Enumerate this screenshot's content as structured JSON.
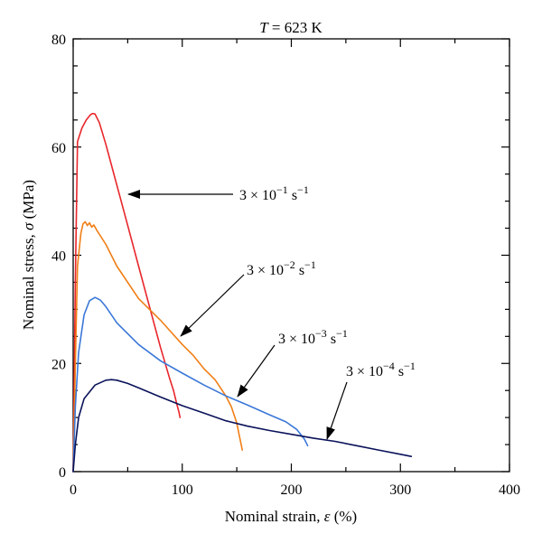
{
  "chart_data": {
    "type": "line",
    "title_prefix": "T",
    "title_suffix": " = 623 K",
    "xlabel_prefix": "Nominal strain, ",
    "xlabel_symbol": "ε",
    "xlabel_suffix": " (%)",
    "ylabel_prefix": "Nominal stress, ",
    "ylabel_symbol": "σ",
    "ylabel_suffix": " (MPa)",
    "xlim": [
      0,
      400
    ],
    "ylim": [
      0,
      80
    ],
    "x_ticks": [
      0,
      100,
      200,
      300,
      400
    ],
    "y_ticks": [
      0,
      20,
      40,
      60,
      80
    ],
    "grid": false,
    "series": [
      {
        "name": "3 × 10−1 s−1",
        "color": "#e8262b",
        "x": [
          0,
          2,
          4,
          8,
          12,
          16,
          18,
          20,
          24,
          30,
          40,
          50,
          60,
          70,
          80,
          88,
          92,
          95,
          97,
          98
        ],
        "y": [
          0,
          35,
          61,
          63.5,
          65,
          66,
          66.2,
          66.1,
          64.5,
          60.5,
          53,
          45.5,
          38,
          30.5,
          23,
          17.5,
          15,
          12.5,
          11,
          10
        ]
      },
      {
        "name": "3 × 10−2 s−1",
        "color": "#f07f16",
        "x": [
          0,
          2,
          4,
          7,
          9,
          11,
          13,
          15,
          17,
          19,
          22,
          30,
          40,
          60,
          80,
          100,
          110,
          120,
          130,
          140,
          145,
          150,
          152,
          154,
          155
        ],
        "y": [
          0,
          20,
          38,
          44,
          45.8,
          46.2,
          45.5,
          46,
          45.2,
          45.6,
          44.5,
          42,
          38,
          32,
          28,
          23.5,
          21.5,
          19,
          17,
          14,
          12,
          9,
          7,
          5,
          4
        ]
      },
      {
        "name": "3 × 10−3 s−1",
        "color": "#3b78d8",
        "x": [
          0,
          2,
          5,
          10,
          15,
          20,
          25,
          30,
          40,
          60,
          80,
          100,
          120,
          140,
          160,
          180,
          195,
          205,
          212,
          215
        ],
        "y": [
          0,
          12,
          22,
          29,
          31.6,
          32.2,
          31.7,
          30.5,
          27.5,
          23.5,
          20.5,
          18.2,
          16,
          14,
          12.3,
          10.5,
          9.2,
          7.8,
          6,
          4.8
        ]
      },
      {
        "name": "3 × 10−4 s−1",
        "color": "#0a125a",
        "x": [
          0,
          2,
          5,
          10,
          20,
          30,
          35,
          40,
          50,
          60,
          80,
          100,
          120,
          140,
          160,
          180,
          200,
          220,
          240,
          260,
          280,
          300,
          310
        ],
        "y": [
          0,
          5,
          10,
          13.5,
          16,
          16.9,
          17,
          16.9,
          16.3,
          15.5,
          13.8,
          12.2,
          10.8,
          9.4,
          8.4,
          7.6,
          6.9,
          6.2,
          5.6,
          4.8,
          4,
          3.2,
          2.8
        ]
      }
    ],
    "annotations": [
      {
        "pre": "3 × 10",
        "sup1": "−1",
        "mid": " s",
        "sup2": "−1",
        "series_index": 0
      },
      {
        "pre": "3 × 10",
        "sup1": "−2",
        "mid": " s",
        "sup2": "−1",
        "series_index": 1
      },
      {
        "pre": "3 × 10",
        "sup1": "−3",
        "mid": " s",
        "sup2": "−1",
        "series_index": 2
      },
      {
        "pre": "3 × 10",
        "sup1": "−4",
        "mid": " s",
        "sup2": "−1",
        "series_index": 3
      }
    ]
  }
}
